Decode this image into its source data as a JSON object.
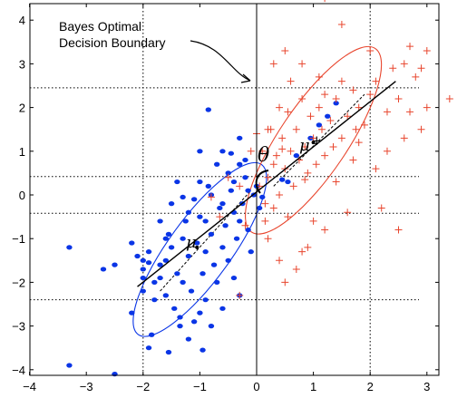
{
  "chart_data": {
    "type": "scatter",
    "xlim": [
      -4.1,
      3.6
    ],
    "ylim": [
      -4.2,
      4.6
    ],
    "x_ticks": [
      -4,
      -3,
      -2,
      -1,
      0,
      1,
      2,
      3
    ],
    "y_ticks": [
      -4,
      -3,
      -2,
      -1,
      0,
      1,
      2,
      3,
      4
    ],
    "grid": false,
    "annotation": {
      "line1": "Bayes Optimal",
      "line2": "Decision Boundary",
      "arrow_to": [
        0.0,
        2.55
      ]
    },
    "symbols": {
      "theta": "θ",
      "mu_minus": "μ",
      "mu_plus": "μ",
      "plus_sign": "+"
    },
    "colors": {
      "class_minus": "#0a35e6",
      "class_plus": "#e8462e",
      "axis_line": "#000000"
    },
    "reference_lines": {
      "vertical": [
        -2.0,
        0.0,
        2.0
      ],
      "horizontal": [
        2.45,
        0.42,
        -0.42,
        -2.4
      ]
    },
    "boundary_x": 0.0,
    "principal_axis": {
      "from": [
        -2.1,
        -2.1
      ],
      "to": [
        2.45,
        2.6
      ]
    },
    "ellipses": [
      {
        "class": "minus",
        "center": [
          -1.0,
          -1.25
        ],
        "rx": 1.85,
        "ry": 0.55,
        "angle_deg": 54
      },
      {
        "class": "plus",
        "center": [
          1.0,
          1.25
        ],
        "rx": 1.95,
        "ry": 0.6,
        "angle_deg": 56
      }
    ],
    "means": {
      "minus": [
        -1.05,
        -1.2
      ],
      "plus": [
        1.0,
        1.2
      ]
    },
    "dashed_axes": [
      {
        "from": [
          -1.7,
          -2.2
        ],
        "to": [
          -0.1,
          0.1
        ]
      },
      {
        "from": [
          0.3,
          0.2
        ],
        "to": [
          1.9,
          2.3
        ]
      }
    ],
    "series": [
      {
        "class": "minus",
        "marker": "dot",
        "points": [
          [
            -3.3,
            -3.9
          ],
          [
            -2.5,
            -4.1
          ],
          [
            -3.3,
            -1.2
          ],
          [
            -2.7,
            -1.7
          ],
          [
            -2.5,
            -1.6
          ],
          [
            -2.0,
            -2.2
          ],
          [
            -2.0,
            -1.9
          ],
          [
            -1.9,
            -3.5
          ],
          [
            -1.85,
            -3.2
          ],
          [
            -1.8,
            -2.4
          ],
          [
            -1.7,
            -1.6
          ],
          [
            -1.6,
            -1.5
          ],
          [
            -1.6,
            -2.3
          ],
          [
            -1.55,
            -0.9
          ],
          [
            -1.5,
            -1.2
          ],
          [
            -1.5,
            -0.2
          ],
          [
            -1.45,
            -2.6
          ],
          [
            -1.4,
            -1.8
          ],
          [
            -1.35,
            -2.8
          ],
          [
            -1.3,
            -1.0
          ],
          [
            -1.3,
            -2.0
          ],
          [
            -1.25,
            -0.6
          ],
          [
            -1.2,
            -1.4
          ],
          [
            -1.2,
            -3.3
          ],
          [
            -1.15,
            -2.2
          ],
          [
            -1.1,
            -0.1
          ],
          [
            -1.05,
            -1.1
          ],
          [
            -1.0,
            -2.7
          ],
          [
            -1.0,
            -0.5
          ],
          [
            -0.95,
            -1.8
          ],
          [
            -0.9,
            -1.3
          ],
          [
            -0.9,
            -2.4
          ],
          [
            -0.85,
            0.2
          ],
          [
            -0.8,
            -0.9
          ],
          [
            -0.8,
            -3.0
          ],
          [
            -0.75,
            -1.6
          ],
          [
            -0.7,
            -2.0
          ],
          [
            -0.65,
            -0.3
          ],
          [
            -0.6,
            -1.2
          ],
          [
            -0.6,
            -2.6
          ],
          [
            -0.55,
            -0.7
          ],
          [
            -0.5,
            -1.5
          ],
          [
            -0.45,
            0.1
          ],
          [
            -0.4,
            -1.9
          ],
          [
            -0.4,
            -0.4
          ],
          [
            -0.35,
            -1.0
          ],
          [
            -0.3,
            -2.3
          ],
          [
            -0.25,
            -0.2
          ],
          [
            -0.2,
            0.4
          ],
          [
            -0.15,
            -0.8
          ],
          [
            -0.1,
            -1.3
          ],
          [
            -0.05,
            0.0
          ],
          [
            0.0,
            0.2
          ],
          [
            0.05,
            -0.3
          ],
          [
            -0.6,
            1.0
          ],
          [
            -0.2,
            0.8
          ],
          [
            -1.7,
            -1.9
          ],
          [
            -2.2,
            -1.1
          ],
          [
            -1.9,
            -1.3
          ],
          [
            -1.4,
            0.3
          ],
          [
            -1.0,
            0.3
          ],
          [
            -0.5,
            0.5
          ],
          [
            -0.3,
            -0.6
          ],
          [
            -0.7,
            0.7
          ],
          [
            -1.2,
            -0.4
          ],
          [
            -1.7,
            -0.6
          ],
          [
            -1.1,
            -2.9
          ],
          [
            -2.2,
            -2.7
          ],
          [
            -0.3,
            0.7
          ],
          [
            -0.15,
            0.1
          ],
          [
            -1.8,
            -2.0
          ],
          [
            -2.0,
            -1.5
          ],
          [
            -0.6,
            -0.2
          ],
          [
            -0.9,
            -0.6
          ],
          [
            0.1,
            -0.05
          ],
          [
            -1.6,
            -1.0
          ],
          [
            -1.3,
            -0.05
          ],
          [
            -0.8,
            0.0
          ],
          [
            -0.4,
            0.3
          ],
          [
            -2.0,
            -1.7
          ],
          [
            -1.0,
            1.0
          ],
          [
            -0.3,
            1.3
          ],
          [
            -0.45,
            0.95
          ],
          [
            -0.85,
            1.95
          ],
          [
            0.45,
            0.35
          ],
          [
            0.7,
            0.9
          ],
          [
            1.1,
            1.6
          ],
          [
            1.4,
            2.1
          ],
          [
            1.25,
            1.8
          ],
          [
            0.95,
            1.3
          ],
          [
            0.55,
            0.3
          ],
          [
            -1.35,
            -3.0
          ],
          [
            -1.55,
            -3.6
          ],
          [
            -0.95,
            -3.55
          ],
          [
            -1.9,
            -1.55
          ],
          [
            -2.1,
            -1.4
          ]
        ]
      },
      {
        "class": "plus",
        "marker": "plus",
        "points": [
          [
            1.2,
            4.5
          ],
          [
            1.5,
            3.9
          ],
          [
            2.0,
            3.3
          ],
          [
            2.6,
            3.0
          ],
          [
            2.7,
            3.4
          ],
          [
            2.9,
            2.9
          ],
          [
            3.0,
            3.3
          ],
          [
            2.4,
            2.9
          ],
          [
            2.5,
            2.2
          ],
          [
            2.1,
            2.6
          ],
          [
            2.3,
            1.9
          ],
          [
            2.0,
            2.3
          ],
          [
            1.8,
            2.0
          ],
          [
            1.9,
            1.6
          ],
          [
            1.7,
            2.4
          ],
          [
            1.6,
            1.8
          ],
          [
            1.5,
            1.3
          ],
          [
            1.4,
            2.2
          ],
          [
            1.35,
            1.1
          ],
          [
            1.3,
            1.7
          ],
          [
            1.2,
            0.9
          ],
          [
            1.15,
            1.5
          ],
          [
            1.1,
            2.0
          ],
          [
            1.05,
            0.7
          ],
          [
            1.0,
            1.3
          ],
          [
            0.95,
            1.8
          ],
          [
            0.9,
            0.5
          ],
          [
            0.85,
            1.1
          ],
          [
            0.8,
            2.2
          ],
          [
            0.75,
            0.8
          ],
          [
            0.7,
            1.5
          ],
          [
            0.65,
            0.2
          ],
          [
            0.6,
            1.0
          ],
          [
            0.55,
            1.9
          ],
          [
            0.5,
            0.6
          ],
          [
            0.45,
            1.3
          ],
          [
            0.4,
            0.0
          ],
          [
            0.35,
            0.9
          ],
          [
            0.3,
            -0.3
          ],
          [
            0.25,
            1.5
          ],
          [
            0.2,
            0.4
          ],
          [
            0.15,
            -0.6
          ],
          [
            0.1,
            1.0
          ],
          [
            0.05,
            0.2
          ],
          [
            0.3,
            3.0
          ],
          [
            0.5,
            3.3
          ],
          [
            0.8,
            3.0
          ],
          [
            1.4,
            0.3
          ],
          [
            1.7,
            0.8
          ],
          [
            2.1,
            0.6
          ],
          [
            2.2,
            -0.3
          ],
          [
            2.6,
            1.3
          ],
          [
            2.9,
            1.5
          ],
          [
            3.0,
            2.0
          ],
          [
            1.6,
            -0.4
          ],
          [
            1.2,
            -0.8
          ],
          [
            0.9,
            -1.2
          ],
          [
            0.4,
            -1.5
          ],
          [
            0.2,
            -1.0
          ],
          [
            0.5,
            -2.0
          ],
          [
            0.7,
            -1.7
          ],
          [
            -0.3,
            -2.3
          ],
          [
            -0.2,
            -0.7
          ],
          [
            -0.3,
            0.2
          ],
          [
            -0.5,
            0.4
          ],
          [
            0.0,
            1.4
          ],
          [
            -0.1,
            1.0
          ],
          [
            0.15,
            -0.2
          ],
          [
            0.55,
            -0.5
          ],
          [
            0.8,
            -1.3
          ],
          [
            1.0,
            -0.6
          ],
          [
            1.8,
            1.2
          ],
          [
            2.3,
            1.0
          ],
          [
            1.2,
            2.3
          ],
          [
            0.4,
            2.0
          ],
          [
            0.6,
            2.6
          ],
          [
            2.5,
            -0.8
          ],
          [
            3.4,
            2.2
          ],
          [
            -0.8,
            -0.05
          ],
          [
            -0.65,
            -0.5
          ],
          [
            0.2,
            1.5
          ],
          [
            0.85,
            0.35
          ],
          [
            1.5,
            2.6
          ],
          [
            1.1,
            2.7
          ],
          [
            2.8,
            2.7
          ],
          [
            2.7,
            1.9
          ],
          [
            0.3,
            0.7
          ],
          [
            0.45,
            1.05
          ],
          [
            1.75,
            1.5
          ]
        ]
      }
    ]
  }
}
